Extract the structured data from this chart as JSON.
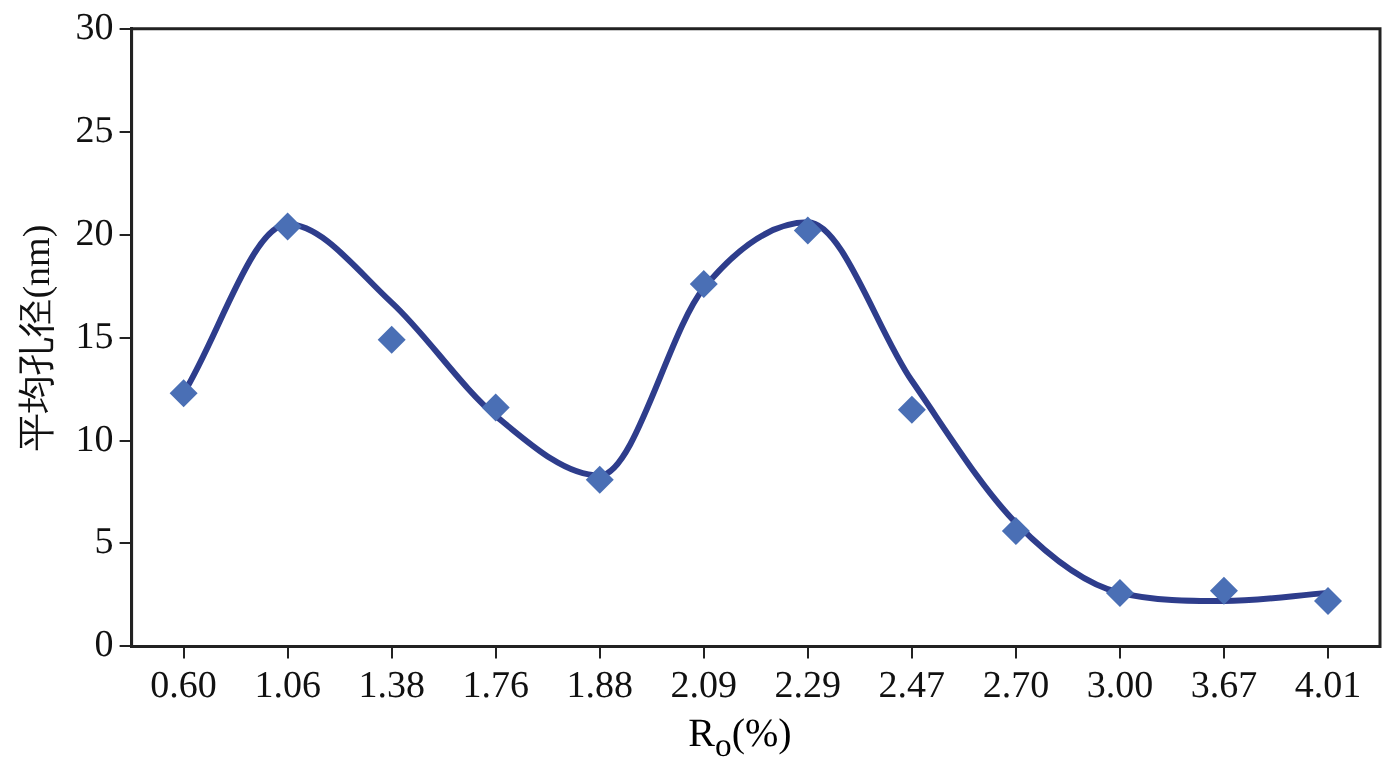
{
  "chart_data": {
    "type": "scatter",
    "xlabel": "R$_{o}$(%)",
    "ylabel": "平均孔径(nm)",
    "categories": [
      "0.60",
      "1.06",
      "1.38",
      "1.76",
      "1.88",
      "2.09",
      "2.29",
      "2.47",
      "2.70",
      "3.00",
      "3.67",
      "4.01"
    ],
    "series": [
      {
        "type": "scatter",
        "color": "#4a6fb5",
        "marker": "diamond",
        "values": [
          12.3,
          20.4,
          14.9,
          11.6,
          8.1,
          17.6,
          20.2,
          11.5,
          5.6,
          2.6,
          2.7,
          2.2
        ]
      },
      {
        "type": "line",
        "color": "#2e3d8c",
        "marker": "none",
        "line_style": "solid",
        "values": [
          12.3,
          20.5,
          16.7,
          11.2,
          8.3,
          17.4,
          20.6,
          12.9,
          6.0,
          2.6,
          2.2,
          2.6
        ]
      }
    ],
    "ylim": [
      0,
      30
    ],
    "yticks": [
      0,
      5,
      10,
      15,
      20,
      25,
      30
    ],
    "grid": false,
    "legend": false
  }
}
